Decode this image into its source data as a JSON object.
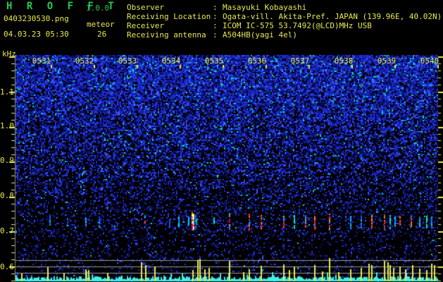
{
  "app": {
    "title": "H R O F F T",
    "version": "1.0.0"
  },
  "header": {
    "filename": "0403230530.png",
    "mode_label": "meteor",
    "datetime": "04.03.23 05:30",
    "meteor_count": "26",
    "separator": ":",
    "info_rows": [
      {
        "label": "Observer",
        "value": "Masayuki Kobayashi"
      },
      {
        "label": "Receiving Location",
        "value": "Ogata-vill. Akita-Pref. JAPAN (139.96E, 40.02N)"
      },
      {
        "label": "Receiver",
        "value": "ICOM IC-575 53.7492(@LCD)MHz USB"
      },
      {
        "label": "Receiving antenna",
        "value": "A504HB(yagi 4el)"
      }
    ]
  },
  "colors": {
    "text_yellow": "#e9e94f",
    "title_green": "#22cc55",
    "trace_cyan": "#3ef2e2",
    "grid_gray": "#9a9a9a",
    "background": "#000000"
  },
  "chart_data": {
    "type": "heatmap",
    "subtype": "radio-meteor-spectrogram",
    "title": "",
    "xlabel": "",
    "ylabel": "kHz",
    "x_tick_labels": [
      "0531",
      "0532",
      "0533",
      "0534",
      "0535",
      "0536",
      "0537",
      "0538",
      "0539",
      "0540"
    ],
    "x_range_minutes": [
      0,
      10
    ],
    "y_tick_labels": [
      "1.1",
      "1.0",
      "0.9",
      "0.8",
      "0.7",
      "0.6"
    ],
    "y_tick_values": [
      1.1,
      1.0,
      0.9,
      0.8,
      0.7,
      0.6
    ],
    "ylim": [
      0.56,
      1.2
    ],
    "y_minor_step_khz": 0.02,
    "grid": false,
    "legend": "none",
    "echo_band_khz": 0.73,
    "echoes": [
      {
        "t_min": 0.97,
        "intensity": 0.35,
        "kind": "cyan"
      },
      {
        "t_min": 1.38,
        "intensity": 0.3,
        "kind": "cyan"
      },
      {
        "t_min": 1.8,
        "intensity": 0.35,
        "kind": "cyan"
      },
      {
        "t_min": 2.11,
        "intensity": 0.3,
        "kind": "cyan"
      },
      {
        "t_min": 3.18,
        "intensity": 0.45,
        "kind": "mix"
      },
      {
        "t_min": 3.75,
        "intensity": 0.3,
        "kind": "blue"
      },
      {
        "t_min": 3.97,
        "intensity": 0.35,
        "kind": "cyan"
      },
      {
        "t_min": 4.28,
        "intensity": 1.0,
        "kind": "strong"
      },
      {
        "t_min": 4.36,
        "intensity": 0.6,
        "kind": "cyan"
      },
      {
        "t_min": 4.79,
        "intensity": 0.35,
        "kind": "green"
      },
      {
        "t_min": 5.15,
        "intensity": 0.75,
        "kind": "red"
      },
      {
        "t_min": 5.61,
        "intensity": 0.7,
        "kind": "red"
      },
      {
        "t_min": 5.89,
        "intensity": 0.5,
        "kind": "red"
      },
      {
        "t_min": 6.41,
        "intensity": 0.4,
        "kind": "red"
      },
      {
        "t_min": 6.66,
        "intensity": 0.5,
        "kind": "green"
      },
      {
        "t_min": 6.92,
        "intensity": 0.45,
        "kind": "mix"
      },
      {
        "t_min": 7.13,
        "intensity": 0.6,
        "kind": "red"
      },
      {
        "t_min": 7.48,
        "intensity": 0.7,
        "kind": "red"
      },
      {
        "t_min": 7.97,
        "intensity": 0.5,
        "kind": "cyan"
      },
      {
        "t_min": 8.21,
        "intensity": 0.4,
        "kind": "cyan"
      },
      {
        "t_min": 8.46,
        "intensity": 0.55,
        "kind": "red"
      },
      {
        "t_min": 8.75,
        "intensity": 0.6,
        "kind": "red"
      },
      {
        "t_min": 8.89,
        "intensity": 0.5,
        "kind": "mix"
      },
      {
        "t_min": 9.0,
        "intensity": 0.35,
        "kind": "cyan"
      },
      {
        "t_min": 9.11,
        "intensity": 0.4,
        "kind": "red"
      },
      {
        "t_min": 9.38,
        "intensity": 0.35,
        "kind": "red"
      },
      {
        "t_min": 9.57,
        "intensity": 0.3,
        "kind": "cyan"
      },
      {
        "t_min": 9.74,
        "intensity": 0.4,
        "kind": "green"
      },
      {
        "t_min": 9.85,
        "intensity": 0.4,
        "kind": "cyan"
      }
    ],
    "strip_spikes": [
      {
        "t_min": 0.31,
        "level": 0.12
      },
      {
        "t_min": 0.92,
        "level": 0.38
      },
      {
        "t_min": 1.3,
        "level": 0.15
      },
      {
        "t_min": 1.8,
        "level": 0.3
      },
      {
        "t_min": 1.87,
        "level": 0.25
      },
      {
        "t_min": 2.31,
        "level": 0.15
      },
      {
        "t_min": 3.1,
        "level": 0.55
      },
      {
        "t_min": 3.2,
        "level": 0.45
      },
      {
        "t_min": 3.41,
        "level": 0.4
      },
      {
        "t_min": 4.3,
        "level": 0.25
      },
      {
        "t_min": 4.41,
        "level": 0.62
      },
      {
        "t_min": 4.46,
        "level": 0.68
      },
      {
        "t_min": 4.57,
        "level": 0.3
      },
      {
        "t_min": 4.67,
        "level": 0.35
      },
      {
        "t_min": 5.15,
        "level": 0.6
      },
      {
        "t_min": 5.48,
        "level": 0.18
      },
      {
        "t_min": 5.61,
        "level": 0.3
      },
      {
        "t_min": 5.89,
        "level": 0.42
      },
      {
        "t_min": 6.41,
        "level": 0.48
      },
      {
        "t_min": 6.54,
        "level": 0.25
      },
      {
        "t_min": 6.66,
        "level": 0.4
      },
      {
        "t_min": 7.13,
        "level": 0.45
      },
      {
        "t_min": 7.31,
        "level": 0.2
      },
      {
        "t_min": 7.48,
        "level": 0.72
      },
      {
        "t_min": 7.69,
        "level": 0.18
      },
      {
        "t_min": 7.97,
        "level": 0.28
      },
      {
        "t_min": 8.21,
        "level": 0.35
      },
      {
        "t_min": 8.39,
        "level": 0.5
      },
      {
        "t_min": 8.46,
        "level": 0.45
      },
      {
        "t_min": 8.75,
        "level": 0.6
      },
      {
        "t_min": 8.84,
        "level": 0.55
      },
      {
        "t_min": 8.89,
        "level": 0.45
      },
      {
        "t_min": 8.97,
        "level": 0.35
      },
      {
        "t_min": 9.11,
        "level": 0.4
      },
      {
        "t_min": 9.25,
        "level": 0.28
      },
      {
        "t_min": 9.41,
        "level": 0.45
      },
      {
        "t_min": 9.57,
        "level": 0.32
      },
      {
        "t_min": 9.74,
        "level": 0.25
      },
      {
        "t_min": 9.85,
        "level": 0.5
      },
      {
        "t_min": 9.92,
        "level": 0.45
      }
    ]
  }
}
